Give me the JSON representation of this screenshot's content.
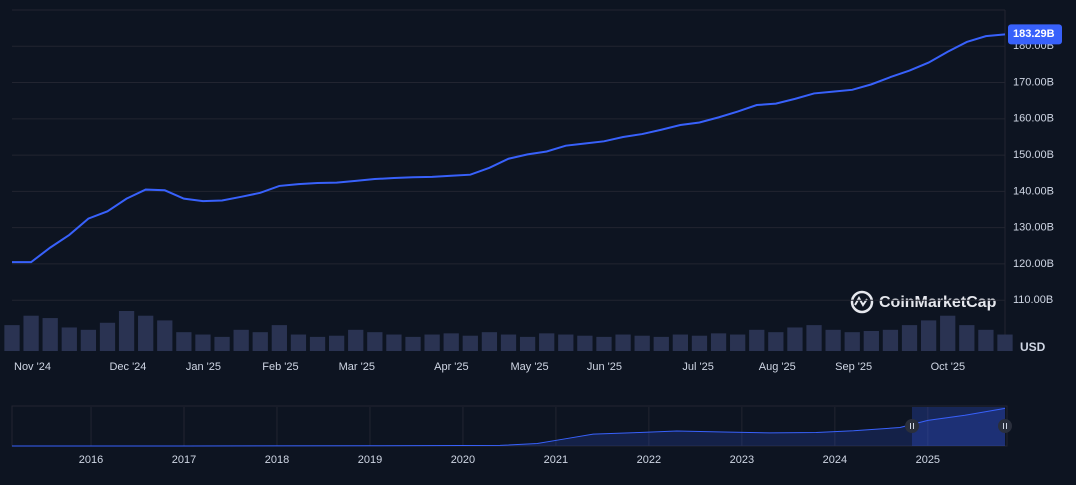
{
  "chart_data": {
    "type": "line",
    "categories": [
      "Nov '24",
      null,
      null,
      null,
      null,
      "Dec '24",
      null,
      null,
      null,
      "Jan '25",
      null,
      null,
      null,
      "Feb '25",
      null,
      null,
      null,
      "Mar '25",
      null,
      null,
      null,
      null,
      "Apr '25",
      null,
      null,
      null,
      "May '25",
      null,
      null,
      null,
      "Jun '25",
      null,
      null,
      null,
      null,
      "Jul '25",
      null,
      null,
      null,
      "Aug '25",
      null,
      null,
      null,
      "Sep '25",
      null,
      null,
      null,
      null,
      "Oct '25",
      null,
      null,
      null,
      null
    ],
    "values": [
      120.5,
      120.5,
      124.5,
      128,
      132.5,
      134.5,
      138,
      140.5,
      140.3,
      138,
      137.3,
      137.5,
      138.5,
      139.6,
      141.5,
      142,
      142.3,
      142.4,
      142.9,
      143.4,
      143.7,
      143.9,
      144,
      144.3,
      144.6,
      146.5,
      149,
      150.2,
      151,
      152.6,
      153.2,
      153.8,
      155,
      155.8,
      157,
      158.3,
      159,
      160.4,
      162,
      163.8,
      164.2,
      165.5,
      167,
      167.5,
      168,
      169.5,
      171.5,
      173.3,
      175.5,
      178.5,
      181.2,
      182.8,
      183.29
    ],
    "value_labels": [
      null,
      null,
      null,
      null,
      null,
      null,
      null,
      null,
      null,
      null,
      null,
      null,
      null,
      null,
      null,
      null,
      null,
      null,
      null,
      null,
      null,
      null,
      null,
      null,
      null,
      null,
      null,
      null,
      null,
      null,
      null,
      null,
      null,
      null,
      null,
      null,
      null,
      null,
      null,
      null,
      null,
      null,
      null,
      null,
      null,
      null,
      null,
      null,
      null,
      null,
      null,
      null,
      "183.29B"
    ],
    "volume": [
      22,
      30,
      28,
      20,
      18,
      24,
      34,
      30,
      26,
      16,
      14,
      12,
      18,
      16,
      22,
      14,
      12,
      13,
      18,
      16,
      14,
      12,
      14,
      15,
      13,
      16,
      14,
      12,
      15,
      14,
      13,
      12,
      14,
      13,
      12,
      14,
      13,
      15,
      14,
      18,
      16,
      20,
      22,
      18,
      16,
      17,
      18,
      22,
      26,
      30,
      22,
      18,
      14
    ],
    "color": "#3861fb",
    "ylim": [
      96,
      190
    ],
    "yticks": [
      {
        "value": 110,
        "label": "110.00B"
      },
      {
        "value": 120,
        "label": "120.00B"
      },
      {
        "value": 130,
        "label": "130.00B"
      },
      {
        "value": 140,
        "label": "140.00B"
      },
      {
        "value": 150,
        "label": "150.00B"
      },
      {
        "value": 160,
        "label": "160.00B"
      },
      {
        "value": 170,
        "label": "170.00B"
      },
      {
        "value": 180,
        "label": "180.00B"
      }
    ],
    "grid": true,
    "currency_label": "USD",
    "watermark": "CoinMarketCap",
    "navigator": {
      "x": [
        2015.15,
        2017,
        2019,
        2020.4,
        2020.8,
        2021.1,
        2021.4,
        2021.9,
        2022.3,
        2022.8,
        2023.3,
        2023.8,
        2024.2,
        2024.7,
        2025.0,
        2025.4,
        2025.83
      ],
      "values": [
        0,
        0,
        1,
        3,
        12,
        35,
        58,
        66,
        73,
        68,
        64,
        66,
        74,
        90,
        125,
        150,
        183.29
      ],
      "xlim": [
        2015.15,
        2025.83
      ],
      "xticks": [
        2016,
        2017,
        2018,
        2019,
        2020,
        2021,
        2022,
        2023,
        2024,
        2025
      ],
      "ylim": [
        0,
        190
      ]
    }
  }
}
